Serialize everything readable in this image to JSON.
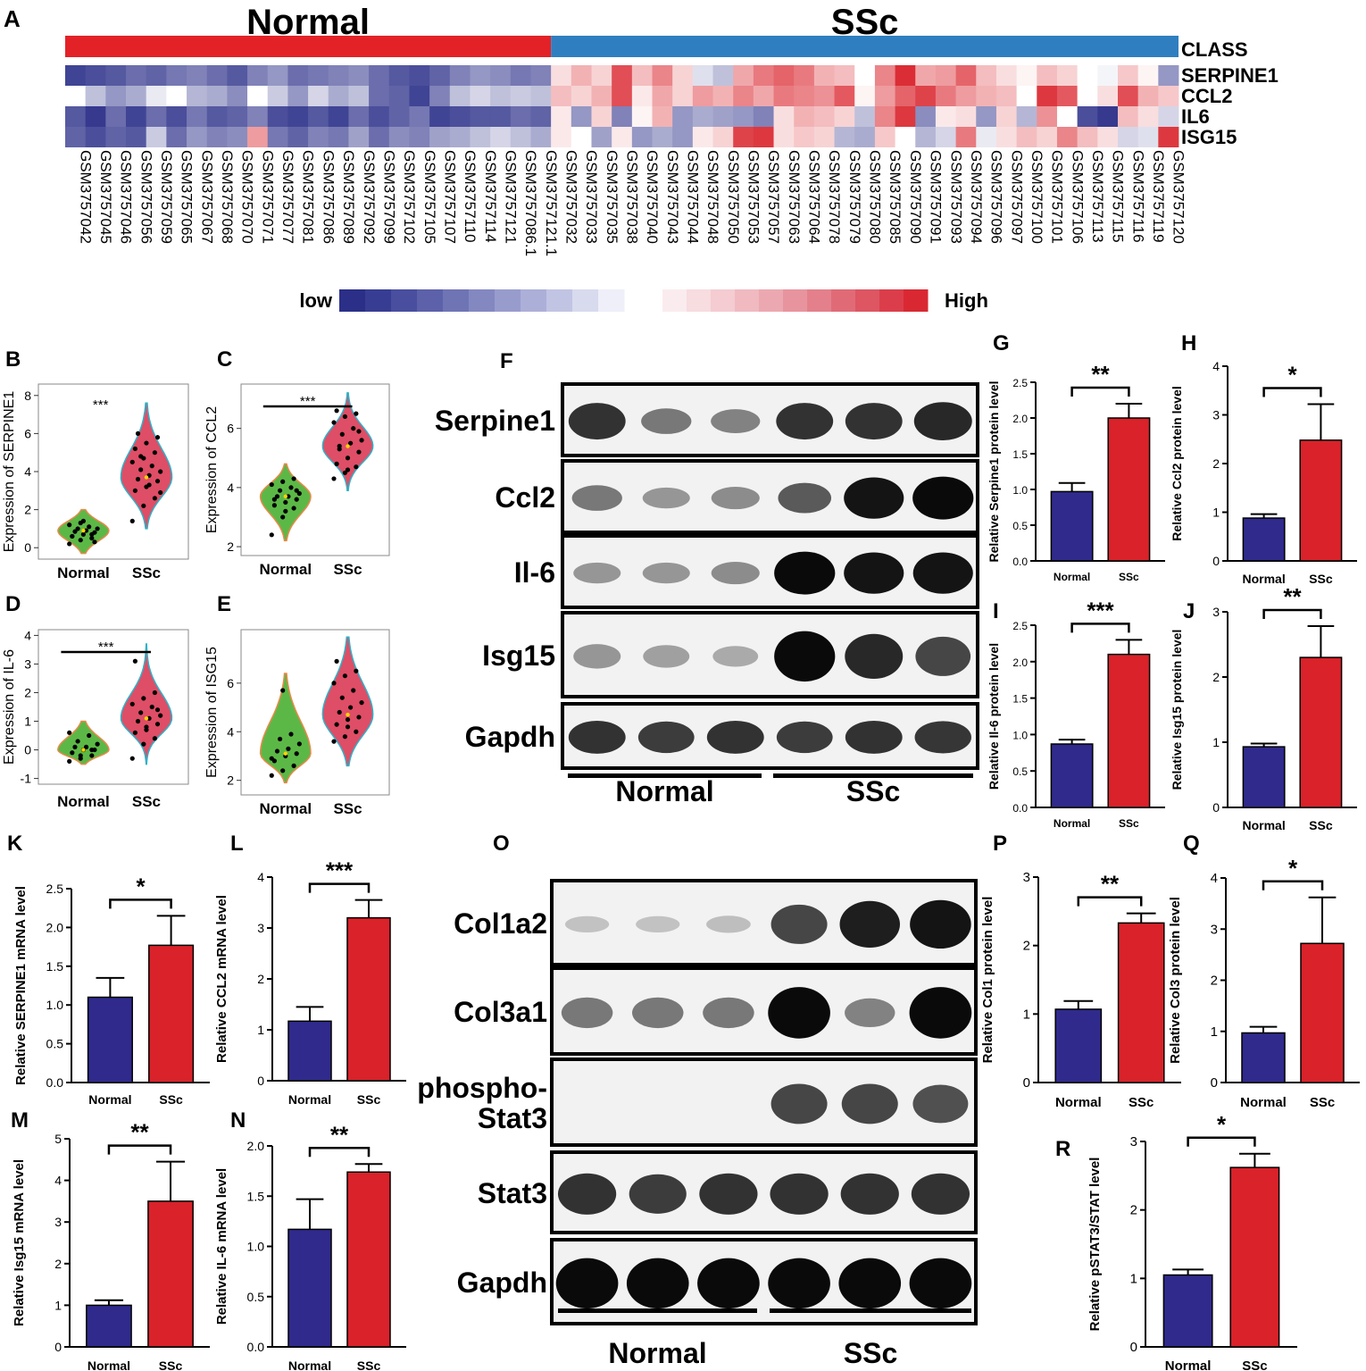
{
  "heatmap": {
    "panel_letter": "A",
    "group_labels": [
      "Normal",
      "SSc"
    ],
    "class_label": "CLASS",
    "genes": [
      "SERPINE1",
      "CCL2",
      "IL6",
      "ISG15"
    ],
    "normal_count": 24,
    "samples": [
      "GSM3757042",
      "GSM3757045",
      "GSM3757046",
      "GSM3757056",
      "GSM3757059",
      "GSM3757065",
      "GSM3757067",
      "GSM3757068",
      "GSM3757070",
      "GSM3757071",
      "GSM3757077",
      "GSM3757081",
      "GSM3757086",
      "GSM3757089",
      "GSM3757092",
      "GSM3757099",
      "GSM3757102",
      "GSM3757105",
      "GSM3757107",
      "GSM3757110",
      "GSM3757114",
      "GSM3757121",
      "GSM3757086.1",
      "GSM3757121.1",
      "GSM3757032",
      "GSM3757033",
      "GSM3757035",
      "GSM3757038",
      "GSM3757040",
      "GSM3757043",
      "GSM3757044",
      "GSM3757048",
      "GSM3757050",
      "GSM3757053",
      "GSM3757057",
      "GSM3757063",
      "GSM3757064",
      "GSM3757078",
      "GSM3757079",
      "GSM3757080",
      "GSM3757085",
      "GSM3757090",
      "GSM3757091",
      "GSM3757093",
      "GSM3757094",
      "GSM3757096",
      "GSM3757097",
      "GSM3757100",
      "GSM3757101",
      "GSM3757106",
      "GSM3757113",
      "GSM3757115",
      "GSM3757116",
      "GSM3757119",
      "GSM3757120"
    ],
    "values": [
      [
        -0.9,
        -0.85,
        -0.8,
        -0.7,
        -0.75,
        -0.65,
        -0.6,
        -0.7,
        -0.8,
        -0.6,
        -0.5,
        -0.7,
        -0.65,
        -0.6,
        -0.55,
        -0.7,
        -0.8,
        -0.85,
        -0.75,
        -0.6,
        -0.5,
        -0.55,
        -0.65,
        -0.6,
        0.15,
        0.35,
        0.2,
        0.8,
        0.3,
        0.55,
        0.2,
        -0.15,
        -0.3,
        0.4,
        0.6,
        0.7,
        0.6,
        0.35,
        0.3,
        0.0,
        0.55,
        0.95,
        0.4,
        0.45,
        0.7,
        0.3,
        0.15,
        0.05,
        0.3,
        0.2,
        0.0,
        -0.05,
        0.25,
        0.05,
        -0.5
      ],
      [
        0.0,
        -0.3,
        -0.5,
        -0.4,
        -0.1,
        0.0,
        -0.35,
        -0.4,
        -0.55,
        0.0,
        -0.25,
        -0.5,
        -0.2,
        -0.4,
        -0.3,
        -0.7,
        -0.75,
        -0.9,
        -0.6,
        -0.3,
        -0.2,
        -0.3,
        -0.25,
        -0.3,
        0.3,
        0.2,
        0.35,
        0.8,
        0.1,
        0.4,
        0.2,
        0.45,
        0.35,
        0.55,
        0.4,
        0.6,
        0.55,
        0.5,
        0.75,
        0.05,
        0.45,
        0.7,
        0.85,
        0.6,
        0.45,
        0.35,
        0.3,
        0.0,
        0.9,
        0.75,
        0.0,
        0.15,
        0.8,
        0.35,
        0.25
      ],
      [
        -0.8,
        -0.95,
        -0.7,
        -0.9,
        -0.7,
        -0.85,
        -0.65,
        -0.8,
        -0.75,
        -0.6,
        -0.85,
        -0.9,
        -0.8,
        -0.9,
        -0.7,
        -0.85,
        -0.75,
        -0.65,
        -0.9,
        -0.85,
        -0.8,
        -0.8,
        -0.7,
        -0.75,
        0.1,
        -0.5,
        0.2,
        -0.6,
        0.05,
        0.35,
        -0.5,
        -0.4,
        -0.45,
        -0.5,
        -0.6,
        0.15,
        0.35,
        0.3,
        0.2,
        -0.3,
        0.55,
        0.9,
        -0.55,
        0.1,
        0.15,
        -0.5,
        0.2,
        -0.35,
        0.5,
        0.0,
        -0.85,
        -0.95,
        0.3,
        0.15,
        -0.2
      ],
      [
        -0.75,
        -0.85,
        -0.75,
        -0.8,
        -0.25,
        -0.7,
        -0.5,
        -0.6,
        -0.55,
        0.45,
        -0.65,
        -0.75,
        -0.6,
        -0.65,
        -0.45,
        -0.7,
        -0.55,
        -0.6,
        -0.45,
        -0.4,
        -0.3,
        -0.2,
        -0.3,
        -0.4,
        0.1,
        0.0,
        -0.45,
        0.1,
        -0.5,
        -0.4,
        -0.5,
        0.1,
        0.2,
        0.85,
        0.9,
        0.15,
        0.25,
        0.2,
        -0.35,
        -0.4,
        0.25,
        0.0,
        -0.35,
        -0.2,
        0.6,
        -0.1,
        0.15,
        0.3,
        0.2,
        0.55,
        0.3,
        0.15,
        -0.2,
        -0.15,
        0.9
      ]
    ],
    "colorbar": {
      "low_label": "low",
      "high_label": "High",
      "low_color": "#2b2f88",
      "high_color": "#d9222a"
    }
  },
  "violins": [
    {
      "letter": "B",
      "ylabel": "Expression of SERPINE1",
      "ticks": [
        0,
        2,
        4,
        6,
        8
      ],
      "ylim": [
        -0.6,
        8.6
      ],
      "sig": "***",
      "sig_bar": false,
      "categories": [
        "Normal",
        "SSc"
      ],
      "normal": {
        "min": -0.3,
        "max": 2.0,
        "center": 0.9,
        "width": 0.45,
        "points": [
          0.2,
          0.4,
          0.5,
          0.6,
          0.7,
          0.8,
          0.85,
          0.9,
          1.0,
          1.0,
          1.1,
          1.2,
          1.3,
          0.7,
          0.6,
          1.4,
          0.3
        ]
      },
      "ssc": {
        "min": 1.0,
        "max": 7.6,
        "center": 3.7,
        "width": 0.38,
        "points": [
          1.4,
          2.2,
          2.6,
          3.0,
          3.2,
          3.5,
          3.6,
          3.8,
          4.0,
          4.1,
          4.3,
          4.5,
          4.7,
          5.0,
          5.2,
          5.5,
          5.8,
          6.0,
          3.3,
          2.9,
          4.8
        ]
      }
    },
    {
      "letter": "C",
      "ylabel": "Expression of CCL2",
      "ticks": [
        2,
        4,
        6
      ],
      "ylim": [
        1.7,
        7.5
      ],
      "sig": "***",
      "sig_bar": true,
      "categories": [
        "Normal",
        "SSc"
      ],
      "normal": {
        "min": 2.2,
        "max": 4.8,
        "center": 3.7,
        "width": 0.4,
        "points": [
          2.4,
          3.0,
          3.3,
          3.4,
          3.5,
          3.6,
          3.7,
          3.7,
          3.8,
          3.9,
          4.0,
          4.1,
          4.2,
          4.3,
          3.6,
          3.2,
          3.9
        ]
      },
      "ssc": {
        "min": 3.9,
        "max": 7.2,
        "center": 5.4,
        "width": 0.36,
        "points": [
          4.3,
          4.5,
          4.7,
          4.8,
          5.0,
          5.2,
          5.4,
          5.5,
          5.6,
          5.8,
          6.0,
          6.2,
          6.4,
          6.5,
          6.6,
          4.6,
          5.9,
          5.3
        ]
      }
    },
    {
      "letter": "D",
      "ylabel": "Expression of IL-6",
      "ticks": [
        -1,
        0,
        1,
        2,
        3,
        4
      ],
      "ylim": [
        -1.2,
        4.2
      ],
      "sig": "***",
      "sig_bar": true,
      "categories": [
        "Normal",
        "SSc"
      ],
      "normal": {
        "min": -0.5,
        "max": 1.0,
        "center": 0.0,
        "width": 0.45,
        "points": [
          -0.4,
          -0.3,
          -0.2,
          -0.1,
          0.0,
          0.0,
          0.1,
          0.1,
          0.2,
          0.3,
          0.5,
          0.6,
          -0.2,
          0.0
        ]
      },
      "ssc": {
        "min": -0.5,
        "max": 3.7,
        "center": 1.1,
        "width": 0.33,
        "points": [
          -0.3,
          0.2,
          0.4,
          0.6,
          0.7,
          0.9,
          1.0,
          1.1,
          1.2,
          1.3,
          1.5,
          1.6,
          1.8,
          2.0,
          3.1,
          0.8,
          1.4
        ]
      }
    },
    {
      "letter": "E",
      "ylabel": "Expression of ISG15",
      "ticks": [
        2,
        4,
        6
      ],
      "ylim": [
        1.4,
        8.2
      ],
      "sig": "",
      "sig_bar": false,
      "categories": [
        "Normal",
        "SSc"
      ],
      "normal": {
        "min": 1.9,
        "max": 6.4,
        "center": 3.1,
        "width": 0.4,
        "points": [
          2.2,
          2.4,
          2.6,
          2.8,
          3.0,
          3.1,
          3.2,
          3.3,
          3.5,
          3.7,
          3.9,
          2.9,
          5.7
        ]
      },
      "ssc": {
        "min": 2.6,
        "max": 7.9,
        "center": 4.7,
        "width": 0.4,
        "points": [
          3.6,
          3.8,
          4.0,
          4.3,
          4.5,
          4.6,
          4.8,
          5.0,
          5.2,
          5.4,
          5.7,
          6.0,
          6.3,
          6.5,
          6.9,
          4.2
        ]
      }
    }
  ],
  "bars": [
    {
      "letter": "G",
      "ylabel": "Relative Serpine1 protein level",
      "ticks": [
        "0.0",
        "0.5",
        "1.0",
        "1.5",
        "2.0",
        "2.5"
      ],
      "ymax": 2.5,
      "values": [
        0.97,
        2.0
      ],
      "errors": [
        0.12,
        0.2
      ],
      "sig": "**",
      "categories": [
        "Normal",
        "SSc"
      ]
    },
    {
      "letter": "H",
      "ylabel": "Relative Ccl2 protein level",
      "ticks": [
        "0",
        "1",
        "2",
        "3",
        "4"
      ],
      "ymax": 4,
      "values": [
        0.88,
        2.48
      ],
      "errors": [
        0.08,
        0.74
      ],
      "sig": "*",
      "categories": [
        "Normal",
        "SSc"
      ]
    },
    {
      "letter": "I",
      "ylabel": "Relative Il-6 protein level",
      "ticks": [
        "0.0",
        "0.5",
        "1.0",
        "1.5",
        "2.0",
        "2.5"
      ],
      "ymax": 2.5,
      "values": [
        0.87,
        2.1
      ],
      "errors": [
        0.06,
        0.2
      ],
      "sig": "***",
      "categories": [
        "Normal",
        "SSc"
      ]
    },
    {
      "letter": "J",
      "ylabel": "Relative Isg15 protein level",
      "ticks": [
        "0",
        "1",
        "2",
        "3"
      ],
      "ymax": 3,
      "values": [
        0.93,
        2.3
      ],
      "errors": [
        0.05,
        0.48
      ],
      "sig": "**",
      "categories": [
        "Normal",
        "SSc"
      ]
    },
    {
      "letter": "K",
      "ylabel": "Relative  SERPINE1 mRNA  level",
      "ticks": [
        "0.0",
        "0.5",
        "1.0",
        "1.5",
        "2.0",
        "2.5"
      ],
      "ymax": 2.5,
      "values": [
        1.1,
        1.77
      ],
      "errors": [
        0.25,
        0.38
      ],
      "sig": "*",
      "categories": [
        "Normal",
        "SSc"
      ]
    },
    {
      "letter": "L",
      "ylabel": "Relative  CCL2 mRNA  level",
      "ticks": [
        "0",
        "1",
        "2",
        "3",
        "4"
      ],
      "ymax": 4,
      "values": [
        1.17,
        3.2
      ],
      "errors": [
        0.28,
        0.35
      ],
      "sig": "***",
      "categories": [
        "Normal",
        "SSc"
      ]
    },
    {
      "letter": "M",
      "ylabel": "Relative Isg15 mRNA level",
      "ticks": [
        "0",
        "1",
        "2",
        "3",
        "4",
        "5"
      ],
      "ymax": 5,
      "values": [
        1.0,
        3.5
      ],
      "errors": [
        0.12,
        0.95
      ],
      "sig": "**",
      "categories": [
        "Normal",
        "SSc"
      ]
    },
    {
      "letter": "N",
      "ylabel": "Relative  IL-6 mRNA  level",
      "ticks": [
        "0.0",
        "0.5",
        "1.0",
        "1.5",
        "2.0"
      ],
      "ymax": 2.0,
      "values": [
        1.17,
        1.74
      ],
      "errors": [
        0.3,
        0.08
      ],
      "sig": "**",
      "categories": [
        "Normal",
        "SSc"
      ]
    },
    {
      "letter": "P",
      "ylabel": "Relative Col1 protein level",
      "ticks": [
        "0",
        "1",
        "2",
        "3"
      ],
      "ymax": 3,
      "values": [
        1.07,
        2.33
      ],
      "errors": [
        0.12,
        0.14
      ],
      "sig": "**",
      "categories": [
        "Normal",
        "SSc"
      ]
    },
    {
      "letter": "Q",
      "ylabel": "Relative Col3 protein level",
      "ticks": [
        "0",
        "1",
        "2",
        "3",
        "4"
      ],
      "ymax": 4,
      "values": [
        0.97,
        2.72
      ],
      "errors": [
        0.12,
        0.9
      ],
      "sig": "*",
      "categories": [
        "Normal",
        "SSc"
      ]
    },
    {
      "letter": "R",
      "ylabel": "Relative pSTAT3/STAT  level",
      "ticks": [
        "0",
        "1",
        "2",
        "3"
      ],
      "ymax": 3,
      "values": [
        1.05,
        2.62
      ],
      "errors": [
        0.08,
        0.2
      ],
      "sig": "*",
      "categories": [
        "Normal",
        "SSc"
      ]
    }
  ],
  "blots": [
    {
      "letter": "F",
      "labels": [
        "Serpine1",
        "Ccl2",
        "Il-6",
        "Isg15",
        "Gapdh"
      ],
      "groups": [
        "Normal",
        "SSc"
      ],
      "intensities": [
        [
          0.8,
          0.45,
          0.4,
          0.8,
          0.8,
          0.85
        ],
        [
          0.45,
          0.3,
          0.35,
          0.6,
          0.95,
          1.0
        ],
        [
          0.3,
          0.3,
          0.35,
          1.0,
          0.95,
          0.95
        ],
        [
          0.3,
          0.25,
          0.2,
          1.0,
          0.85,
          0.7
        ],
        [
          0.8,
          0.75,
          0.8,
          0.75,
          0.8,
          0.78
        ]
      ]
    },
    {
      "letter": "O",
      "labels": [
        "Col1a2",
        "Col3a1",
        "phospho-\nStat3",
        "Stat3",
        "Gapdh"
      ],
      "groups": [
        "Normal",
        "SSc"
      ],
      "intensities": [
        [
          0.08,
          0.08,
          0.1,
          0.7,
          0.9,
          0.95
        ],
        [
          0.45,
          0.45,
          0.45,
          1.0,
          0.4,
          1.0
        ],
        [
          0.0,
          0.0,
          0.0,
          0.7,
          0.7,
          0.65
        ],
        [
          0.8,
          0.75,
          0.8,
          0.8,
          0.8,
          0.8
        ],
        [
          1.0,
          1.0,
          1.0,
          1.0,
          1.0,
          1.0
        ]
      ]
    }
  ],
  "chart_data": [
    {
      "type": "heatmap",
      "title": "",
      "rows": [
        "SERPINE1",
        "CCL2",
        "IL6",
        "ISG15"
      ],
      "annotation": "CLASS",
      "groups": [
        "Normal",
        "SSc"
      ],
      "legend": [
        "low",
        "High"
      ]
    },
    {
      "type": "bar",
      "panel": "G",
      "categories": [
        "Normal",
        "SSc"
      ],
      "values": [
        0.97,
        2.0
      ],
      "errors": [
        0.12,
        0.2
      ],
      "ylabel": "Relative Serpine1 protein level",
      "ylim": [
        0,
        2.5
      ],
      "significance": "**"
    },
    {
      "type": "bar",
      "panel": "H",
      "categories": [
        "Normal",
        "SSc"
      ],
      "values": [
        0.88,
        2.48
      ],
      "errors": [
        0.08,
        0.74
      ],
      "ylabel": "Relative Ccl2 protein level",
      "ylim": [
        0,
        4
      ],
      "significance": "*"
    },
    {
      "type": "bar",
      "panel": "I",
      "categories": [
        "Normal",
        "SSc"
      ],
      "values": [
        0.87,
        2.1
      ],
      "errors": [
        0.06,
        0.2
      ],
      "ylabel": "Relative Il-6 protein level",
      "ylim": [
        0,
        2.5
      ],
      "significance": "***"
    },
    {
      "type": "bar",
      "panel": "J",
      "categories": [
        "Normal",
        "SSc"
      ],
      "values": [
        0.93,
        2.3
      ],
      "errors": [
        0.05,
        0.48
      ],
      "ylabel": "Relative Isg15 protein level",
      "ylim": [
        0,
        3
      ],
      "significance": "**"
    },
    {
      "type": "bar",
      "panel": "K",
      "categories": [
        "Normal",
        "SSc"
      ],
      "values": [
        1.1,
        1.77
      ],
      "errors": [
        0.25,
        0.38
      ],
      "ylabel": "Relative  SERPINE1 mRNA  level",
      "ylim": [
        0,
        2.5
      ],
      "significance": "*"
    },
    {
      "type": "bar",
      "panel": "L",
      "categories": [
        "Normal",
        "SSc"
      ],
      "values": [
        1.17,
        3.2
      ],
      "errors": [
        0.28,
        0.35
      ],
      "ylabel": "Relative  CCL2 mRNA  level",
      "ylim": [
        0,
        4
      ],
      "significance": "***"
    },
    {
      "type": "bar",
      "panel": "M",
      "categories": [
        "Normal",
        "SSc"
      ],
      "values": [
        1.0,
        3.5
      ],
      "errors": [
        0.12,
        0.95
      ],
      "ylabel": "Relative Isg15 mRNA level",
      "ylim": [
        0,
        5
      ],
      "significance": "**"
    },
    {
      "type": "bar",
      "panel": "N",
      "categories": [
        "Normal",
        "SSc"
      ],
      "values": [
        1.17,
        1.74
      ],
      "errors": [
        0.3,
        0.08
      ],
      "ylabel": "Relative  IL-6 mRNA  level",
      "ylim": [
        0,
        2
      ],
      "significance": "**"
    },
    {
      "type": "bar",
      "panel": "P",
      "categories": [
        "Normal",
        "SSc"
      ],
      "values": [
        1.07,
        2.33
      ],
      "errors": [
        0.12,
        0.14
      ],
      "ylabel": "Relative Col1 protein level",
      "ylim": [
        0,
        3
      ],
      "significance": "**"
    },
    {
      "type": "bar",
      "panel": "Q",
      "categories": [
        "Normal",
        "SSc"
      ],
      "values": [
        0.97,
        2.72
      ],
      "errors": [
        0.12,
        0.9
      ],
      "ylabel": "Relative Col3 protein level",
      "ylim": [
        0,
        4
      ],
      "significance": "*"
    },
    {
      "type": "bar",
      "panel": "R",
      "categories": [
        "Normal",
        "SSc"
      ],
      "values": [
        1.05,
        2.62
      ],
      "errors": [
        0.08,
        0.2
      ],
      "ylabel": "Relative pSTAT3/STAT  level",
      "ylim": [
        0,
        3
      ],
      "significance": "*"
    }
  ],
  "colors": {
    "normal_bar": "#2f2a8c",
    "ssc_bar": "#d9222a",
    "class_normal": "#e32227",
    "class_ssc": "#2f7fc0",
    "violin_normal": "#5cb846",
    "violin_ssc": "#de4e66",
    "violin_normal_edge": "#e9894a",
    "violin_ssc_edge": "#2fb2c8"
  }
}
